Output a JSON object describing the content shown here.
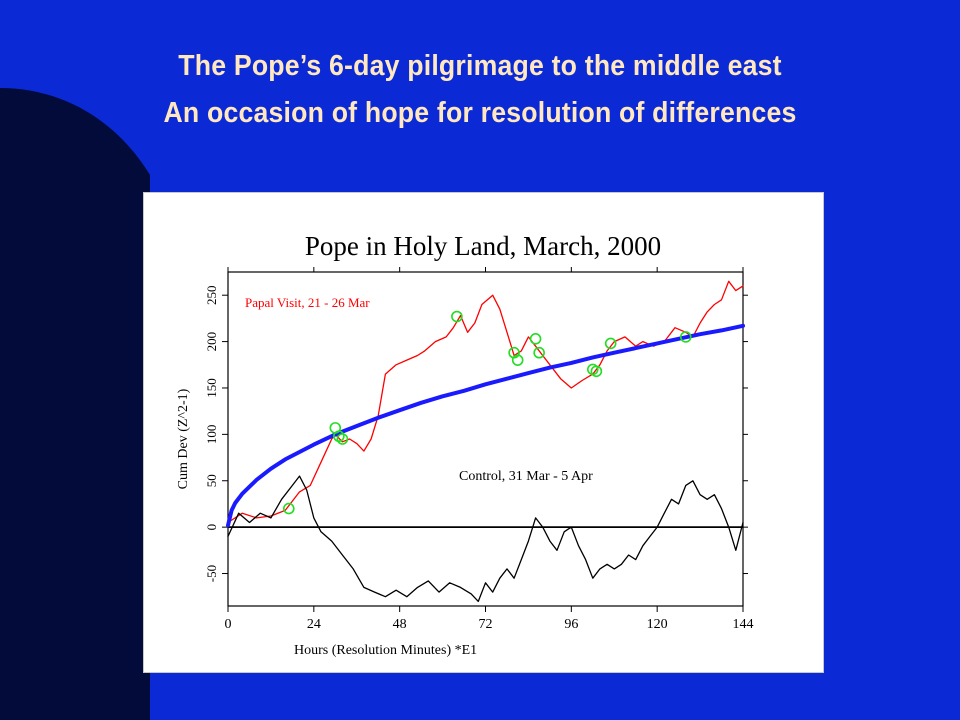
{
  "slide": {
    "title_line1": "The Pope’s 6-day pilgrimage to the middle east",
    "title_line2": "An occasion of hope for resolution of differences",
    "bg_color": "#0b2ad6",
    "shadow_color": "#020b3a",
    "title_color": "#ffe8c0"
  },
  "chart_data": {
    "type": "line",
    "title": "Pope in Holy Land, March, 2000",
    "xlabel": "Hours (Resolution Minutes)    *E1",
    "ylabel": "Cum Dev (Z^2-1)",
    "xlim": [
      0,
      144
    ],
    "ylim": [
      -85,
      275
    ],
    "x_ticks": [
      0,
      24,
      48,
      72,
      96,
      120,
      144
    ],
    "y_ticks": [
      -50,
      0,
      50,
      100,
      150,
      200,
      250
    ],
    "grid": false,
    "zero_line": true,
    "annotations": [
      {
        "text": "Papal Visit, 21 - 26 Mar",
        "color": "#ff0000"
      },
      {
        "text": "Control, 31 Mar - 5 Apr",
        "color": "#000000"
      }
    ],
    "series": [
      {
        "name": "Papal Visit, 21 - 26 Mar",
        "color": "#ff0000",
        "points": [
          [
            0,
            5
          ],
          [
            4,
            15
          ],
          [
            8,
            10
          ],
          [
            12,
            12
          ],
          [
            16,
            18
          ],
          [
            20,
            38
          ],
          [
            23,
            45
          ],
          [
            26,
            70
          ],
          [
            29,
            95
          ],
          [
            30,
            100
          ],
          [
            32,
            92
          ],
          [
            34,
            95
          ],
          [
            36,
            90
          ],
          [
            38,
            82
          ],
          [
            40,
            95
          ],
          [
            42,
            120
          ],
          [
            44,
            165
          ],
          [
            47,
            175
          ],
          [
            50,
            180
          ],
          [
            53,
            185
          ],
          [
            55,
            190
          ],
          [
            58,
            200
          ],
          [
            61,
            205
          ],
          [
            63,
            215
          ],
          [
            65,
            228
          ],
          [
            67,
            210
          ],
          [
            69,
            220
          ],
          [
            71,
            240
          ],
          [
            74,
            250
          ],
          [
            76,
            235
          ],
          [
            78,
            210
          ],
          [
            80,
            185
          ],
          [
            82,
            190
          ],
          [
            84,
            205
          ],
          [
            86,
            195
          ],
          [
            88,
            185
          ],
          [
            90,
            175
          ],
          [
            93,
            160
          ],
          [
            96,
            150
          ],
          [
            99,
            158
          ],
          [
            102,
            165
          ],
          [
            104,
            175
          ],
          [
            106,
            190
          ],
          [
            108,
            200
          ],
          [
            111,
            205
          ],
          [
            114,
            195
          ],
          [
            116,
            200
          ],
          [
            119,
            195
          ],
          [
            122,
            200
          ],
          [
            125,
            215
          ],
          [
            128,
            210
          ],
          [
            130,
            205
          ],
          [
            132,
            220
          ],
          [
            134,
            232
          ],
          [
            136,
            240
          ],
          [
            138,
            245
          ],
          [
            140,
            265
          ],
          [
            142,
            255
          ],
          [
            144,
            260
          ]
        ]
      },
      {
        "name": "Control, 31 Mar - 5 Apr",
        "color": "#000000",
        "points": [
          [
            0,
            -10
          ],
          [
            3,
            15
          ],
          [
            6,
            5
          ],
          [
            9,
            15
          ],
          [
            12,
            10
          ],
          [
            15,
            30
          ],
          [
            18,
            45
          ],
          [
            20,
            55
          ],
          [
            22,
            40
          ],
          [
            24,
            10
          ],
          [
            26,
            -5
          ],
          [
            29,
            -15
          ],
          [
            32,
            -30
          ],
          [
            35,
            -45
          ],
          [
            38,
            -65
          ],
          [
            41,
            -70
          ],
          [
            44,
            -75
          ],
          [
            47,
            -68
          ],
          [
            50,
            -75
          ],
          [
            53,
            -65
          ],
          [
            56,
            -58
          ],
          [
            59,
            -70
          ],
          [
            62,
            -60
          ],
          [
            65,
            -65
          ],
          [
            68,
            -72
          ],
          [
            70,
            -80
          ],
          [
            72,
            -60
          ],
          [
            74,
            -70
          ],
          [
            76,
            -55
          ],
          [
            78,
            -45
          ],
          [
            80,
            -55
          ],
          [
            82,
            -35
          ],
          [
            84,
            -15
          ],
          [
            86,
            10
          ],
          [
            88,
            0
          ],
          [
            90,
            -15
          ],
          [
            92,
            -25
          ],
          [
            94,
            -5
          ],
          [
            96,
            0
          ],
          [
            98,
            -20
          ],
          [
            100,
            -35
          ],
          [
            102,
            -55
          ],
          [
            104,
            -45
          ],
          [
            106,
            -40
          ],
          [
            108,
            -45
          ],
          [
            110,
            -40
          ],
          [
            112,
            -30
          ],
          [
            114,
            -35
          ],
          [
            116,
            -20
          ],
          [
            118,
            -10
          ],
          [
            120,
            0
          ],
          [
            122,
            15
          ],
          [
            124,
            30
          ],
          [
            126,
            25
          ],
          [
            128,
            45
          ],
          [
            130,
            50
          ],
          [
            132,
            35
          ],
          [
            134,
            30
          ],
          [
            136,
            35
          ],
          [
            138,
            20
          ],
          [
            140,
            0
          ],
          [
            142,
            -25
          ],
          [
            144,
            5
          ]
        ]
      },
      {
        "name": "",
        "color": "#1a1aff",
        "points": [
          [
            0,
            2
          ],
          [
            1,
            18
          ],
          [
            2,
            26
          ],
          [
            4,
            36
          ],
          [
            8,
            51
          ],
          [
            12,
            63
          ],
          [
            16,
            73
          ],
          [
            20,
            81
          ],
          [
            24,
            89
          ],
          [
            30,
            100
          ],
          [
            36,
            109
          ],
          [
            42,
            118
          ],
          [
            48,
            126
          ],
          [
            54,
            134
          ],
          [
            60,
            141
          ],
          [
            66,
            147
          ],
          [
            72,
            154
          ],
          [
            78,
            160
          ],
          [
            84,
            166
          ],
          [
            90,
            172
          ],
          [
            96,
            177
          ],
          [
            102,
            183
          ],
          [
            108,
            188
          ],
          [
            114,
            193
          ],
          [
            120,
            198
          ],
          [
            126,
            203
          ],
          [
            132,
            208
          ],
          [
            138,
            212
          ],
          [
            144,
            217
          ]
        ]
      }
    ],
    "markers": {
      "color": "#22dd22",
      "points": [
        [
          17,
          20
        ],
        [
          30,
          107
        ],
        [
          31,
          98
        ],
        [
          32,
          95
        ],
        [
          64,
          227
        ],
        [
          80,
          188
        ],
        [
          81,
          180
        ],
        [
          86,
          203
        ],
        [
          87,
          188
        ],
        [
          102,
          170
        ],
        [
          103,
          168
        ],
        [
          107,
          198
        ],
        [
          128,
          205
        ]
      ]
    }
  }
}
